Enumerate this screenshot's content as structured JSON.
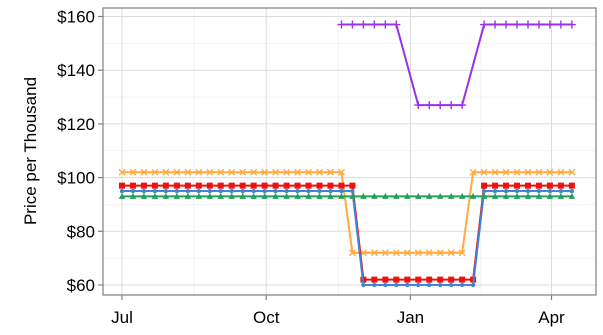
{
  "chart_data": {
    "type": "line",
    "title": "",
    "xlabel": "",
    "ylabel": "Price per Thousand",
    "x_start": "2013-07-01",
    "x_range": [
      "2013-06-24",
      "2014-04-22"
    ],
    "ylim": [
      57,
      162
    ],
    "grid": true,
    "legend": "none",
    "y_ticks": [
      {
        "value": 60,
        "label": "$60"
      },
      {
        "value": 80,
        "label": "$80"
      },
      {
        "value": 100,
        "label": "$100"
      },
      {
        "value": 120,
        "label": "$120"
      },
      {
        "value": 140,
        "label": "$140"
      },
      {
        "value": 160,
        "label": "$160"
      }
    ],
    "x_ticks": [
      {
        "date": "2013-07-01",
        "label": "Jul"
      },
      {
        "date": "2013-10-01",
        "label": "Oct"
      },
      {
        "date": "2014-01-01",
        "label": "Jan"
      },
      {
        "date": "2014-04-01",
        "label": "Apr"
      }
    ],
    "series": [
      {
        "color": "#9b30e8",
        "marker": "plus",
        "x": [
          "2013-11-18",
          "2013-11-25",
          "2013-12-02",
          "2013-12-09",
          "2013-12-16",
          "2013-12-23",
          "2014-01-06",
          "2014-01-13",
          "2014-01-20",
          "2014-01-27",
          "2014-02-03",
          "2014-02-17",
          "2014-02-24",
          "2014-03-03",
          "2014-03-10",
          "2014-03-17",
          "2014-03-24",
          "2014-03-31",
          "2014-04-07",
          "2014-04-14"
        ],
        "y": [
          157,
          157,
          157,
          157,
          157,
          157,
          127,
          127,
          127,
          127,
          127,
          157,
          157,
          157,
          157,
          157,
          157,
          157,
          157,
          157
        ]
      },
      {
        "color": "#ffaa40",
        "marker": "x",
        "x": [
          "2013-07-01",
          "2013-07-08",
          "2013-07-15",
          "2013-07-22",
          "2013-07-29",
          "2013-08-05",
          "2013-08-12",
          "2013-08-19",
          "2013-08-26",
          "2013-09-02",
          "2013-09-09",
          "2013-09-16",
          "2013-09-23",
          "2013-09-30",
          "2013-10-07",
          "2013-10-14",
          "2013-10-21",
          "2013-10-28",
          "2013-11-04",
          "2013-11-11",
          "2013-11-18",
          "2013-11-25",
          "2013-12-02",
          "2013-12-09",
          "2013-12-16",
          "2013-12-23",
          "2013-12-30",
          "2014-01-06",
          "2014-01-13",
          "2014-01-20",
          "2014-01-27",
          "2014-02-03",
          "2014-02-10",
          "2014-02-17",
          "2014-02-24",
          "2014-03-03",
          "2014-03-10",
          "2014-03-17",
          "2014-03-24",
          "2014-03-31",
          "2014-04-07",
          "2014-04-14"
        ],
        "y": [
          102,
          102,
          102,
          102,
          102,
          102,
          102,
          102,
          102,
          102,
          102,
          102,
          102,
          102,
          102,
          102,
          102,
          102,
          102,
          102,
          102,
          72,
          72,
          72,
          72,
          72,
          72,
          72,
          72,
          72,
          72,
          72,
          102,
          102,
          102,
          102,
          102,
          102,
          102,
          102,
          102,
          102
        ]
      },
      {
        "color": "#ee1111",
        "marker": "square",
        "x": [
          "2013-07-01",
          "2013-07-08",
          "2013-07-15",
          "2013-07-22",
          "2013-07-29",
          "2013-08-05",
          "2013-08-12",
          "2013-08-19",
          "2013-08-26",
          "2013-09-02",
          "2013-09-09",
          "2013-09-16",
          "2013-09-23",
          "2013-09-30",
          "2013-10-07",
          "2013-10-14",
          "2013-10-21",
          "2013-10-28",
          "2013-11-04",
          "2013-11-11",
          "2013-11-18",
          "2013-11-25",
          "2013-12-02",
          "2013-12-09",
          "2013-12-16",
          "2013-12-23",
          "2013-12-30",
          "2014-01-06",
          "2014-01-13",
          "2014-01-20",
          "2014-01-27",
          "2014-02-03",
          "2014-02-10",
          "2014-02-17",
          "2014-02-24",
          "2014-03-03",
          "2014-03-10",
          "2014-03-17",
          "2014-03-24",
          "2014-03-31",
          "2014-04-07",
          "2014-04-14"
        ],
        "y": [
          97,
          97,
          97,
          97,
          97,
          97,
          97,
          97,
          97,
          97,
          97,
          97,
          97,
          97,
          97,
          97,
          97,
          97,
          97,
          97,
          97,
          97,
          62,
          62,
          62,
          62,
          62,
          62,
          62,
          62,
          62,
          62,
          62,
          97,
          97,
          97,
          97,
          97,
          97,
          97,
          97,
          97
        ]
      },
      {
        "color": "#3f86d8",
        "marker": "dot",
        "x": [
          "2013-07-01",
          "2013-07-08",
          "2013-07-15",
          "2013-07-22",
          "2013-07-29",
          "2013-08-05",
          "2013-08-12",
          "2013-08-19",
          "2013-08-26",
          "2013-09-02",
          "2013-09-09",
          "2013-09-16",
          "2013-09-23",
          "2013-09-30",
          "2013-10-07",
          "2013-10-14",
          "2013-10-21",
          "2013-10-28",
          "2013-11-04",
          "2013-11-11",
          "2013-11-18",
          "2013-11-25",
          "2013-12-02",
          "2013-12-09",
          "2013-12-16",
          "2013-12-23",
          "2013-12-30",
          "2014-01-06",
          "2014-01-13",
          "2014-01-20",
          "2014-01-27",
          "2014-02-03",
          "2014-02-10",
          "2014-02-17",
          "2014-02-24",
          "2014-03-03",
          "2014-03-10",
          "2014-03-17",
          "2014-03-24",
          "2014-03-31",
          "2014-04-07",
          "2014-04-14"
        ],
        "y": [
          95,
          95,
          95,
          95,
          95,
          95,
          95,
          95,
          95,
          95,
          95,
          95,
          95,
          95,
          95,
          95,
          95,
          95,
          95,
          95,
          95,
          95,
          60,
          60,
          60,
          60,
          60,
          60,
          60,
          60,
          60,
          60,
          60,
          95,
          95,
          95,
          95,
          95,
          95,
          95,
          95,
          95
        ]
      },
      {
        "color": "#23a05a",
        "marker": "triangle",
        "x": [
          "2013-07-01",
          "2013-07-08",
          "2013-07-15",
          "2013-07-22",
          "2013-07-29",
          "2013-08-05",
          "2013-08-12",
          "2013-08-19",
          "2013-08-26",
          "2013-09-02",
          "2013-09-09",
          "2013-09-16",
          "2013-09-23",
          "2013-09-30",
          "2013-10-07",
          "2013-10-14",
          "2013-10-21",
          "2013-10-28",
          "2013-11-04",
          "2013-11-11",
          "2013-11-18",
          "2013-11-25",
          "2013-12-02",
          "2013-12-09",
          "2013-12-16",
          "2013-12-23",
          "2013-12-30",
          "2014-01-06",
          "2014-01-13",
          "2014-01-20",
          "2014-01-27",
          "2014-02-03",
          "2014-02-10",
          "2014-02-17",
          "2014-02-24",
          "2014-03-03",
          "2014-03-10",
          "2014-03-17",
          "2014-03-24",
          "2014-03-31",
          "2014-04-07",
          "2014-04-14"
        ],
        "y": [
          93,
          93,
          93,
          93,
          93,
          93,
          93,
          93,
          93,
          93,
          93,
          93,
          93,
          93,
          93,
          93,
          93,
          93,
          93,
          93,
          93,
          93,
          93,
          93,
          93,
          93,
          93,
          93,
          93,
          93,
          93,
          93,
          93,
          93,
          93,
          93,
          93,
          93,
          93,
          93,
          93,
          93
        ]
      }
    ]
  }
}
